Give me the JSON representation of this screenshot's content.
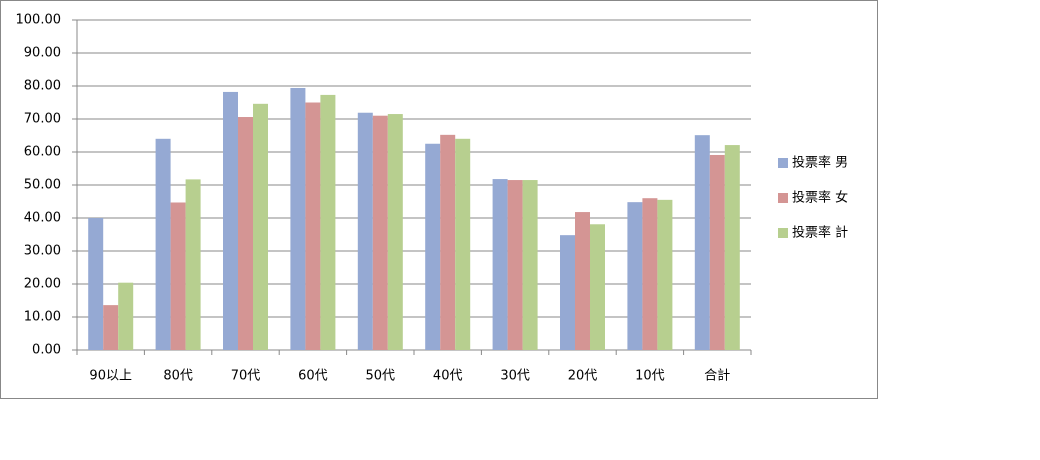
{
  "chart_data": {
    "type": "bar",
    "categories": [
      "90以上",
      "80代",
      "70代",
      "60代",
      "50代",
      "40代",
      "30代",
      "20代",
      "10代",
      "合計"
    ],
    "series": [
      {
        "name": "投票率 男",
        "color": "#95a9d3",
        "values": [
          40.0,
          64.0,
          78.2,
          79.4,
          71.9,
          62.5,
          51.8,
          34.8,
          44.8,
          65.1
        ]
      },
      {
        "name": "投票率 女",
        "color": "#d49594",
        "values": [
          13.6,
          44.7,
          70.6,
          75.0,
          71.0,
          65.2,
          51.5,
          41.8,
          46.0,
          59.1
        ]
      },
      {
        "name": "投票率 計",
        "color": "#b7cf8f",
        "values": [
          20.4,
          51.7,
          74.6,
          77.3,
          71.5,
          64.0,
          51.5,
          38.1,
          45.5,
          62.1
        ]
      }
    ],
    "ylim": [
      0,
      100
    ],
    "yticks": [
      {
        "value": 0,
        "label": "0.00"
      },
      {
        "value": 10,
        "label": "10.00"
      },
      {
        "value": 20,
        "label": "20.00"
      },
      {
        "value": 30,
        "label": "30.00"
      },
      {
        "value": 40,
        "label": "40.00"
      },
      {
        "value": 50,
        "label": "50.00"
      },
      {
        "value": 60,
        "label": "60.00"
      },
      {
        "value": 70,
        "label": "70.00"
      },
      {
        "value": 80,
        "label": "80.00"
      },
      {
        "value": 90,
        "label": "90.00"
      },
      {
        "value": 100,
        "label": "100.00"
      }
    ],
    "grid": true,
    "legend": "right"
  }
}
